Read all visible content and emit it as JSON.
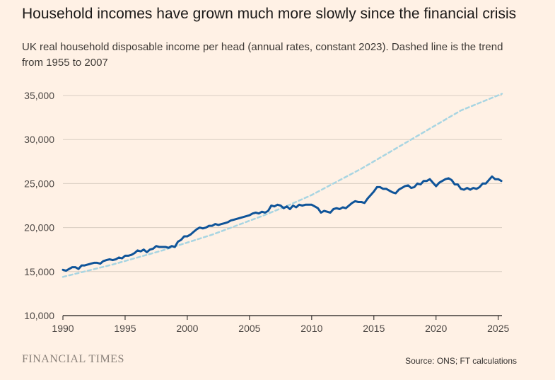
{
  "title": "Household incomes have grown much more slowly since the financial crisis",
  "subtitle": "UK real household disposable income per head (annual rates, constant 2023). Dashed line is the trend from 1955 to 2007",
  "brand": "FINANCIAL TIMES",
  "source": "Source: ONS; FT calculations",
  "colors": {
    "background": "#fff1e5",
    "series": "#0f5499",
    "trend": "#a8d5e2",
    "grid": "#d9cdc2",
    "axis": "#1a1817"
  },
  "chart_data": {
    "type": "line",
    "ylim": [
      10000,
      35000
    ],
    "xlim": [
      1990,
      2025.3
    ],
    "yticks": [
      10000,
      15000,
      20000,
      25000,
      30000,
      35000
    ],
    "ytick_labels": [
      "10,000",
      "15,000",
      "20,000",
      "25,000",
      "30,000",
      "35,000"
    ],
    "xticks": [
      1990,
      1995,
      2000,
      2005,
      2010,
      2015,
      2020,
      2025
    ],
    "xtick_labels": [
      "1990",
      "1995",
      "2000",
      "2005",
      "2010",
      "2015",
      "2020",
      "2025"
    ],
    "grid": true,
    "series": [
      {
        "style": "solid",
        "x": [
          1990.0,
          1990.25,
          1990.5,
          1990.75,
          1991.0,
          1991.25,
          1991.5,
          1991.75,
          1992.0,
          1992.25,
          1992.5,
          1992.75,
          1993.0,
          1993.25,
          1993.5,
          1993.75,
          1994.0,
          1994.25,
          1994.5,
          1994.75,
          1995.0,
          1995.25,
          1995.5,
          1995.75,
          1996.0,
          1996.25,
          1996.5,
          1996.75,
          1997.0,
          1997.25,
          1997.5,
          1997.75,
          1998.0,
          1998.25,
          1998.5,
          1998.75,
          1999.0,
          1999.25,
          1999.5,
          1999.75,
          2000.0,
          2000.25,
          2000.5,
          2000.75,
          2001.0,
          2001.25,
          2001.5,
          2001.75,
          2002.0,
          2002.25,
          2002.5,
          2002.75,
          2003.0,
          2003.25,
          2003.5,
          2003.75,
          2004.0,
          2004.25,
          2004.5,
          2004.75,
          2005.0,
          2005.25,
          2005.5,
          2005.75,
          2006.0,
          2006.25,
          2006.5,
          2006.75,
          2007.0,
          2007.25,
          2007.5,
          2007.75,
          2008.0,
          2008.25,
          2008.5,
          2008.75,
          2009.0,
          2009.25,
          2009.5,
          2009.75,
          2010.0,
          2010.25,
          2010.5,
          2010.75,
          2011.0,
          2011.25,
          2011.5,
          2011.75,
          2012.0,
          2012.25,
          2012.5,
          2012.75,
          2013.0,
          2013.25,
          2013.5,
          2013.75,
          2014.0,
          2014.25,
          2014.5,
          2014.75,
          2015.0,
          2015.25,
          2015.5,
          2015.75,
          2016.0,
          2016.25,
          2016.5,
          2016.75,
          2017.0,
          2017.25,
          2017.5,
          2017.75,
          2018.0,
          2018.25,
          2018.5,
          2018.75,
          2019.0,
          2019.25,
          2019.5,
          2019.75,
          2020.0,
          2020.25,
          2020.5,
          2020.75,
          2021.0,
          2021.25,
          2021.5,
          2021.75,
          2022.0,
          2022.25,
          2022.5,
          2022.75,
          2023.0,
          2023.25,
          2023.5,
          2023.75,
          2024.0,
          2024.25,
          2024.5,
          2024.75,
          2025.0,
          2025.25
        ],
        "values": [
          15200,
          15100,
          15300,
          15500,
          15500,
          15300,
          15700,
          15700,
          15800,
          15900,
          16000,
          16000,
          15900,
          16200,
          16300,
          16400,
          16300,
          16400,
          16600,
          16500,
          16800,
          16800,
          16900,
          17100,
          17400,
          17300,
          17500,
          17200,
          17500,
          17600,
          17900,
          17800,
          17800,
          17800,
          17700,
          17900,
          17800,
          18400,
          18600,
          19000,
          19000,
          19200,
          19500,
          19800,
          20000,
          19900,
          20000,
          20200,
          20200,
          20400,
          20300,
          20400,
          20500,
          20600,
          20800,
          20900,
          21000,
          21100,
          21200,
          21300,
          21400,
          21600,
          21700,
          21600,
          21800,
          21700,
          21900,
          22500,
          22400,
          22600,
          22500,
          22200,
          22400,
          22100,
          22500,
          22300,
          22600,
          22500,
          22600,
          22600,
          22600,
          22400,
          22200,
          21700,
          21900,
          21800,
          21700,
          22100,
          22200,
          22100,
          22300,
          22200,
          22500,
          22800,
          23000,
          22900,
          22900,
          22800,
          23300,
          23700,
          24100,
          24600,
          24600,
          24400,
          24400,
          24200,
          24000,
          23900,
          24300,
          24500,
          24700,
          24800,
          24500,
          24600,
          25000,
          24900,
          25300,
          25300,
          25500,
          25100,
          24700,
          25100,
          25300,
          25500,
          25600,
          25400,
          24900,
          24900,
          24400,
          24300,
          24500,
          24300,
          24500,
          24400,
          24600,
          25000,
          25000,
          25400,
          25800,
          25500,
          25500,
          25300
        ]
      },
      {
        "style": "dashed",
        "x": [
          1990.0,
          1994.0,
          1998.0,
          2002.0,
          2006.0,
          2008.0,
          2010.0,
          2014.0,
          2018.0,
          2022.0,
          2025.3
        ],
        "values": [
          14400,
          15800,
          17400,
          19200,
          21300,
          22450,
          23700,
          26700,
          30000,
          33300,
          35200
        ]
      }
    ]
  }
}
